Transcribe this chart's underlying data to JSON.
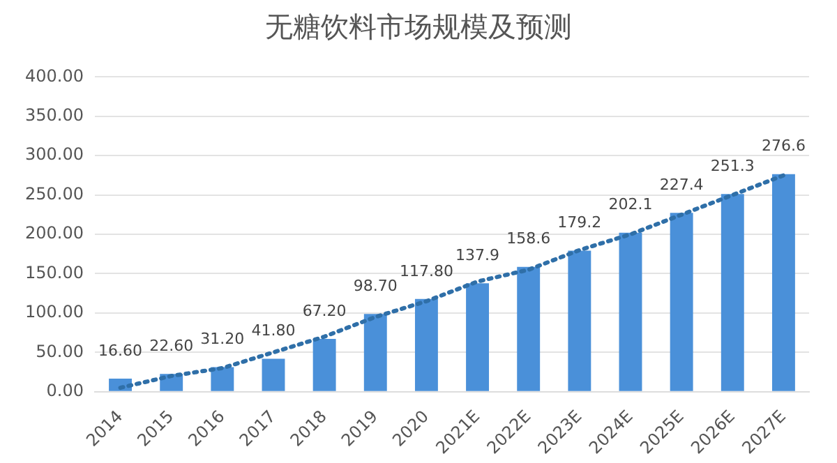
{
  "chart_data": {
    "type": "bar",
    "title": "无糖饮料市场规模及预测",
    "categories": [
      "2014",
      "2015",
      "2016",
      "2017",
      "2018",
      "2019",
      "2020",
      "2021E",
      "2022E",
      "2023E",
      "2024E",
      "2025E",
      "2026E",
      "2027E"
    ],
    "series": [
      {
        "color": "#4a90d9",
        "values": [
          16.6,
          22.6,
          31.2,
          41.8,
          67.2,
          98.7,
          117.8,
          137.9,
          158.6,
          179.2,
          202.1,
          227.4,
          251.3,
          276.6
        ],
        "value_labels": [
          "16.60",
          "22.60",
          "31.20",
          "41.80",
          "67.20",
          "98.70",
          "117.80",
          "137.9",
          "158.6",
          "179.2",
          "202.1",
          "227.4",
          "251.3",
          "276.6"
        ]
      },
      {
        "type": "line",
        "color": "#2f6fa8",
        "line_style": "dotted",
        "marker": "none",
        "values": [
          5,
          20,
          30,
          50,
          70,
          95,
          115,
          140,
          155,
          180,
          200,
          225,
          250,
          275
        ]
      }
    ],
    "ylim": [
      0,
      400
    ],
    "yticks": [
      {
        "value": 0,
        "label": "0.00"
      },
      {
        "value": 50,
        "label": "50.00"
      },
      {
        "value": 100,
        "label": "100.00"
      },
      {
        "value": 150,
        "label": "150.00"
      },
      {
        "value": 200,
        "label": "200.00"
      },
      {
        "value": 250,
        "label": "250.00"
      },
      {
        "value": 300,
        "label": "300.00"
      },
      {
        "value": 350,
        "label": "350.00"
      },
      {
        "value": 400,
        "label": "400.00"
      }
    ],
    "grid": "y",
    "legend": false
  }
}
